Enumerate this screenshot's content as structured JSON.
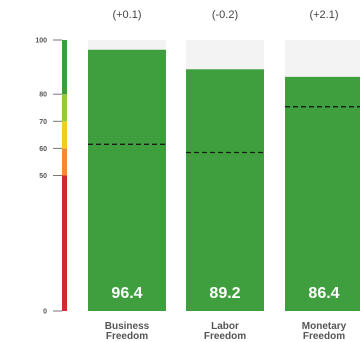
{
  "chart_data": {
    "type": "bar",
    "categories": [
      {
        "line1": "Business",
        "line2": "Freedom"
      },
      {
        "line1": "Labor",
        "line2": "Freedom"
      },
      {
        "line1": "Monetary",
        "line2": "Freedom"
      }
    ],
    "values": [
      96.4,
      89.2,
      86.4
    ],
    "value_labels": [
      "96.4",
      "89.2",
      "86.4"
    ],
    "changes": [
      "(+0.1)",
      "(-0.2)",
      "(+2.1)"
    ],
    "reference_values": [
      61.5,
      58.5,
      75.4
    ],
    "ylim": [
      0,
      100
    ],
    "y_ticks": [
      {
        "value": 100,
        "label": "100"
      },
      {
        "value": 80,
        "label": "80"
      },
      {
        "value": 70,
        "label": "70"
      },
      {
        "value": 60,
        "label": "60"
      },
      {
        "value": 50,
        "label": "50"
      },
      {
        "value": 0,
        "label": "0"
      }
    ],
    "scale_bands": [
      {
        "from": 0,
        "to": 50,
        "color": "#d12a2a"
      },
      {
        "from": 50,
        "to": 60,
        "color": "#ef8a3c"
      },
      {
        "from": 60,
        "to": 70,
        "color": "#f2cd1c"
      },
      {
        "from": 70,
        "to": 80,
        "color": "#94c83d"
      },
      {
        "from": 80,
        "to": 100,
        "color": "#3a9e3a"
      }
    ],
    "colors": {
      "bar": "#3f9f3f",
      "bar_track": "#f3f3f3",
      "reference_line": "#1a1a1a"
    },
    "grid": false,
    "legend": "none"
  }
}
